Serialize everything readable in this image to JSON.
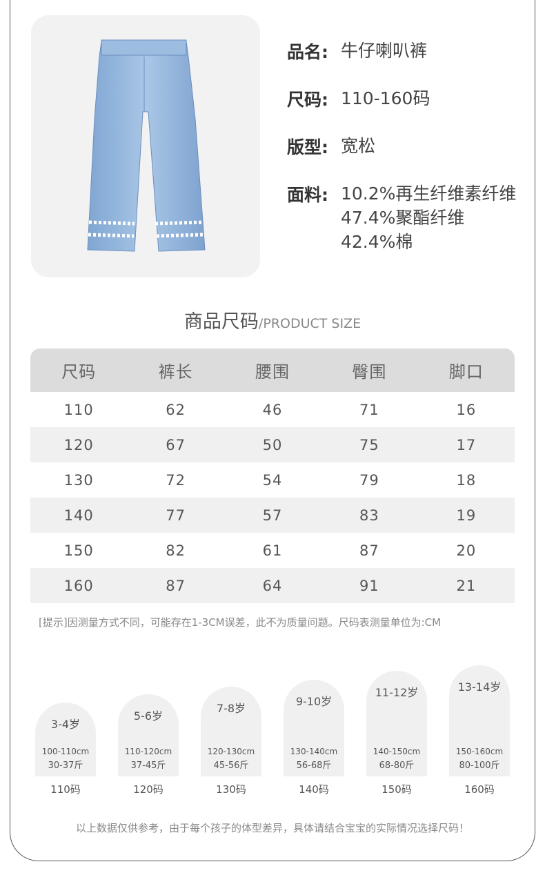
{
  "product": {
    "name_label": "品名:",
    "name": "牛仔喇叭裤",
    "size_label": "尺码:",
    "size": "110-160码",
    "fit_label": "版型:",
    "fit": "宽松",
    "fabric_label": "面料:",
    "fabric": [
      "10.2%再生纤维素纤维",
      "47.4%聚酯纤维",
      "42.4%棉"
    ],
    "image": "denim-flare-pants-image"
  },
  "section": {
    "title": "商品尺码",
    "subtitle": "/PRODUCT SIZE"
  },
  "table": {
    "headers": [
      "尺码",
      "裤长",
      "腰围",
      "臀围",
      "脚口"
    ],
    "rows": [
      [
        "110",
        "62",
        "46",
        "71",
        "16"
      ],
      [
        "120",
        "67",
        "50",
        "75",
        "17"
      ],
      [
        "130",
        "72",
        "54",
        "79",
        "18"
      ],
      [
        "140",
        "77",
        "57",
        "83",
        "19"
      ],
      [
        "150",
        "82",
        "61",
        "87",
        "20"
      ],
      [
        "160",
        "87",
        "64",
        "91",
        "21"
      ]
    ]
  },
  "note": "[提示]因测量方式不同，可能存在1-3CM误差，此不为质量问题。尺码表测量单位为:CM",
  "guide": [
    {
      "age": "3-4岁",
      "height": "100-110cm",
      "weight": "30-37斤",
      "size": "110码"
    },
    {
      "age": "5-6岁",
      "height": "110-120cm",
      "weight": "37-45斤",
      "size": "120码"
    },
    {
      "age": "7-8岁",
      "height": "120-130cm",
      "weight": "45-56斤",
      "size": "130码"
    },
    {
      "age": "9-10岁",
      "height": "130-140cm",
      "weight": "56-68斤",
      "size": "140码"
    },
    {
      "age": "11-12岁",
      "height": "140-150cm",
      "weight": "68-80斤",
      "size": "150码"
    },
    {
      "age": "13-14岁",
      "height": "150-160cm",
      "weight": "80-100斤",
      "size": "160码"
    }
  ],
  "footer": "以上数据仅供参考，由于每个孩子的体型差异，具体请结合宝宝的实际情况选择尺码！",
  "colors": {
    "header_bg": "#dcdcdc",
    "stripe": "#f0f0f0",
    "denim": "#8fb3d9"
  }
}
